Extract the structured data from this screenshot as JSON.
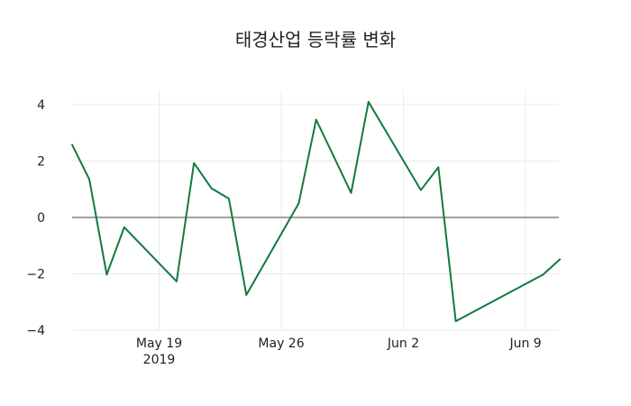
{
  "chart_data": {
    "type": "line",
    "title": "태경산업 등락률 변화",
    "xlabel": "",
    "ylabel": "",
    "ylim": [
      -4.4,
      4.4
    ],
    "grid": true,
    "legend": null,
    "x_ticks": [
      {
        "label": "May 19",
        "sublabel": "2019",
        "date": "2019-05-19"
      },
      {
        "label": "May 26",
        "sublabel": "",
        "date": "2019-05-26"
      },
      {
        "label": "Jun 2",
        "sublabel": "",
        "date": "2019-06-02"
      },
      {
        "label": "Jun 9",
        "sublabel": "",
        "date": "2019-06-09"
      }
    ],
    "y_ticks": [
      4,
      2,
      0,
      -2,
      -4
    ],
    "y_tick_labels": [
      "4",
      "2",
      "0",
      "−2",
      "−4"
    ],
    "series": [
      {
        "name": "등락률",
        "color": "#117a3e",
        "x": [
          "2019-05-14",
          "2019-05-15",
          "2019-05-16",
          "2019-05-17",
          "2019-05-20",
          "2019-05-21",
          "2019-05-22",
          "2019-05-23",
          "2019-05-24",
          "2019-05-27",
          "2019-05-28",
          "2019-05-30",
          "2019-05-31",
          "2019-06-03",
          "2019-06-04",
          "2019-06-05",
          "2019-06-10",
          "2019-06-11"
        ],
        "values": [
          2.6,
          1.35,
          -2.03,
          -0.35,
          -2.27,
          1.93,
          1.03,
          0.67,
          -2.75,
          0.5,
          3.47,
          0.87,
          4.1,
          0.97,
          1.78,
          -3.68,
          -2.03,
          -1.47
        ]
      }
    ]
  }
}
